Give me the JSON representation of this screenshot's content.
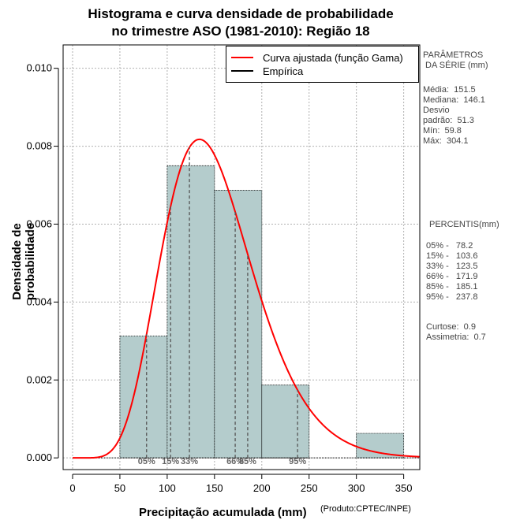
{
  "chart_data": {
    "type": "bar",
    "title": [
      "Histograma e curva densidade de probabilidade",
      "no trimestre ASO (1981-2010): Região 18"
    ],
    "xlabel": "Precipitação acumulada (mm)",
    "ylabel": "Densidade de probabilidade",
    "credit": "(Produto:CPTEC/INPE)",
    "xlim": [
      -10,
      367
    ],
    "ylim": [
      -0.0003,
      0.0106
    ],
    "xticks": [
      0,
      50,
      100,
      150,
      200,
      250,
      300,
      350
    ],
    "yticks": [
      0.0,
      0.002,
      0.004,
      0.006,
      0.008,
      0.01
    ],
    "ytick_labels": [
      "0.000",
      "0.002",
      "0.004",
      "0.006",
      "0.008",
      "0.010"
    ],
    "grid": true,
    "bins": [
      {
        "x0": 50,
        "x1": 100,
        "density": 0.00313
      },
      {
        "x0": 100,
        "x1": 150,
        "density": 0.0075
      },
      {
        "x0": 150,
        "x1": 200,
        "density": 0.00687
      },
      {
        "x0": 200,
        "x1": 250,
        "density": 0.00187
      },
      {
        "x0": 250,
        "x1": 300,
        "density": 0.0
      },
      {
        "x0": 300,
        "x1": 350,
        "density": 0.00063
      }
    ],
    "gamma_fit": {
      "mean": 151.5,
      "sd": 51.3
    },
    "percentiles": [
      {
        "label": "05%",
        "x": 78.2
      },
      {
        "label": "15%",
        "x": 103.6
      },
      {
        "label": "33%",
        "x": 123.5
      },
      {
        "label": "66%",
        "x": 171.9
      },
      {
        "label": "85%",
        "x": 185.1
      },
      {
        "label": "95%",
        "x": 237.8
      }
    ],
    "legend": [
      {
        "label": "Curva ajustada (função Gama)",
        "color": "#ff0000"
      },
      {
        "label": "Empírica",
        "color": "#000000"
      }
    ],
    "colors": {
      "bar": "#b4cccc",
      "curve": "#ff0000",
      "grid": "#b0b0b0",
      "percentile": "#555555"
    }
  },
  "side_panel": {
    "params_title": "PARÂMETROS\n DA SÉRIE (mm)",
    "params": "Média:  151.5\nMediana:  146.1\nDesvio\npadrão:  51.3\nMín:  59.8\nMáx:  304.1",
    "perc_title": "PERCENTIS(mm)",
    "percentis": "05% -   78.2\n15% -   103.6\n33% -   123.5\n66% -   171.9\n85% -   185.1\n95% -   237.8",
    "stats": "Curtose:  0.9\nAssimetria:  0.7"
  }
}
